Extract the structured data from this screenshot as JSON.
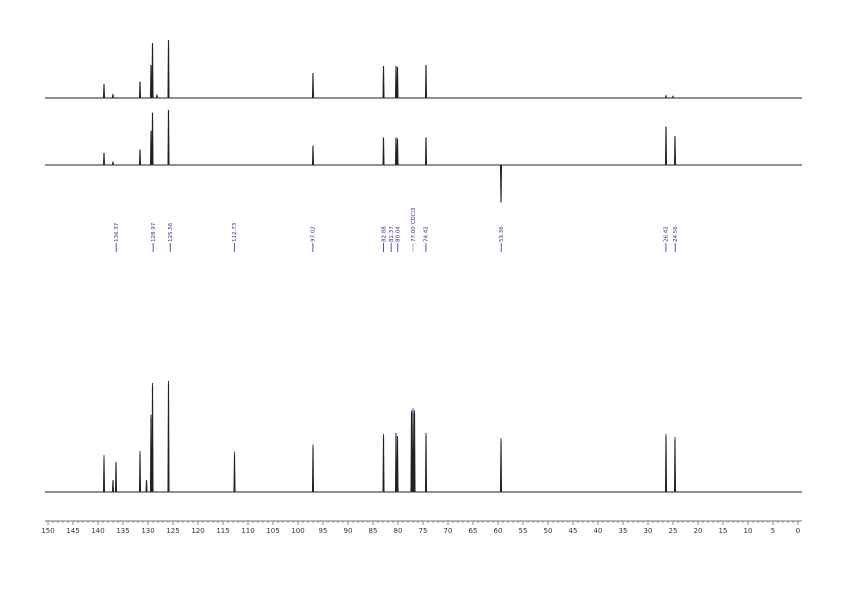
{
  "chart_data": {
    "type": "line",
    "title": "",
    "xlabel": "",
    "ylabel": "",
    "xlim": [
      150,
      0
    ],
    "x_ticks": [
      150,
      145,
      140,
      135,
      130,
      125,
      120,
      115,
      110,
      105,
      100,
      95,
      90,
      85,
      80,
      75,
      70,
      65,
      60,
      55,
      50,
      45,
      40,
      35,
      30,
      25,
      20,
      15,
      10,
      5,
      0
    ],
    "colors": {
      "trace": "#222222",
      "peak_label": "#2a2a9c",
      "solvent_label": "#9a9a9a"
    },
    "series": [
      {
        "peaks": [
          {
            "x": 138.8,
            "h": 0.25
          },
          {
            "x": 137.0,
            "h": 0.07
          },
          {
            "x": 131.6,
            "h": 0.3
          },
          {
            "x": 129.4,
            "h": 0.6
          },
          {
            "x": 129.1,
            "h": 1.0
          },
          {
            "x": 128.2,
            "h": 0.06
          },
          {
            "x": 125.9,
            "h": 1.05
          },
          {
            "x": 97.0,
            "h": 0.45
          },
          {
            "x": 82.9,
            "h": 0.58
          },
          {
            "x": 80.4,
            "h": 0.58
          },
          {
            "x": 80.1,
            "h": 0.56
          },
          {
            "x": 74.4,
            "h": 0.6
          },
          {
            "x": 26.4,
            "h": 0.04
          },
          {
            "x": 25.0,
            "h": 0.03
          }
        ]
      },
      {
        "peaks": [
          {
            "x": 138.8,
            "h": 0.22
          },
          {
            "x": 137.0,
            "h": 0.06
          },
          {
            "x": 131.6,
            "h": 0.28
          },
          {
            "x": 129.4,
            "h": 0.62
          },
          {
            "x": 129.1,
            "h": 0.95
          },
          {
            "x": 125.9,
            "h": 1.0
          },
          {
            "x": 97.0,
            "h": 0.35
          },
          {
            "x": 82.9,
            "h": 0.5
          },
          {
            "x": 80.4,
            "h": 0.5
          },
          {
            "x": 80.1,
            "h": 0.48
          },
          {
            "x": 74.4,
            "h": 0.5
          },
          {
            "x": 59.4,
            "h": -0.68
          },
          {
            "x": 26.4,
            "h": 0.7
          },
          {
            "x": 24.6,
            "h": 0.52
          }
        ]
      },
      {
        "peaks": [
          {
            "x": 138.8,
            "h": 0.32
          },
          {
            "x": 137.0,
            "h": 0.11
          },
          {
            "x": 136.4,
            "h": 0.28
          },
          {
            "x": 131.6,
            "h": 0.36
          },
          {
            "x": 130.3,
            "h": 0.11
          },
          {
            "x": 129.4,
            "h": 0.7
          },
          {
            "x": 129.1,
            "h": 1.0
          },
          {
            "x": 125.9,
            "h": 1.02
          },
          {
            "x": 112.7,
            "h": 0.35
          },
          {
            "x": 97.0,
            "h": 0.42
          },
          {
            "x": 82.9,
            "h": 0.52
          },
          {
            "x": 80.4,
            "h": 0.53
          },
          {
            "x": 80.1,
            "h": 0.5
          },
          {
            "x": 77.3,
            "h": 0.74
          },
          {
            "x": 77.0,
            "h": 0.76
          },
          {
            "x": 76.7,
            "h": 0.74
          },
          {
            "x": 74.4,
            "h": 0.53
          },
          {
            "x": 59.4,
            "h": 0.48
          },
          {
            "x": 26.4,
            "h": 0.52
          },
          {
            "x": 24.6,
            "h": 0.49
          }
        ]
      }
    ],
    "peak_labels": [
      {
        "x": 136.37,
        "text": "136.37",
        "solvent": false
      },
      {
        "x": 128.97,
        "text": "128.97",
        "solvent": false
      },
      {
        "x": 125.56,
        "text": "125.56",
        "solvent": false
      },
      {
        "x": 112.73,
        "text": "112.73",
        "solvent": false
      },
      {
        "x": 97.02,
        "text": "97.02",
        "solvent": false
      },
      {
        "x": 82.88,
        "text": "82.88",
        "solvent": false
      },
      {
        "x": 81.37,
        "text": "81.37",
        "solvent": false
      },
      {
        "x": 80.04,
        "text": "80.04",
        "solvent": false
      },
      {
        "x": 77.0,
        "text": "77.00 CDCl3",
        "solvent": true
      },
      {
        "x": 74.42,
        "text": "74.42",
        "solvent": false
      },
      {
        "x": 59.36,
        "text": "59.36",
        "solvent": false
      },
      {
        "x": 26.42,
        "text": "26.42",
        "solvent": false
      },
      {
        "x": 24.56,
        "text": "24.56",
        "solvent": false
      }
    ]
  }
}
